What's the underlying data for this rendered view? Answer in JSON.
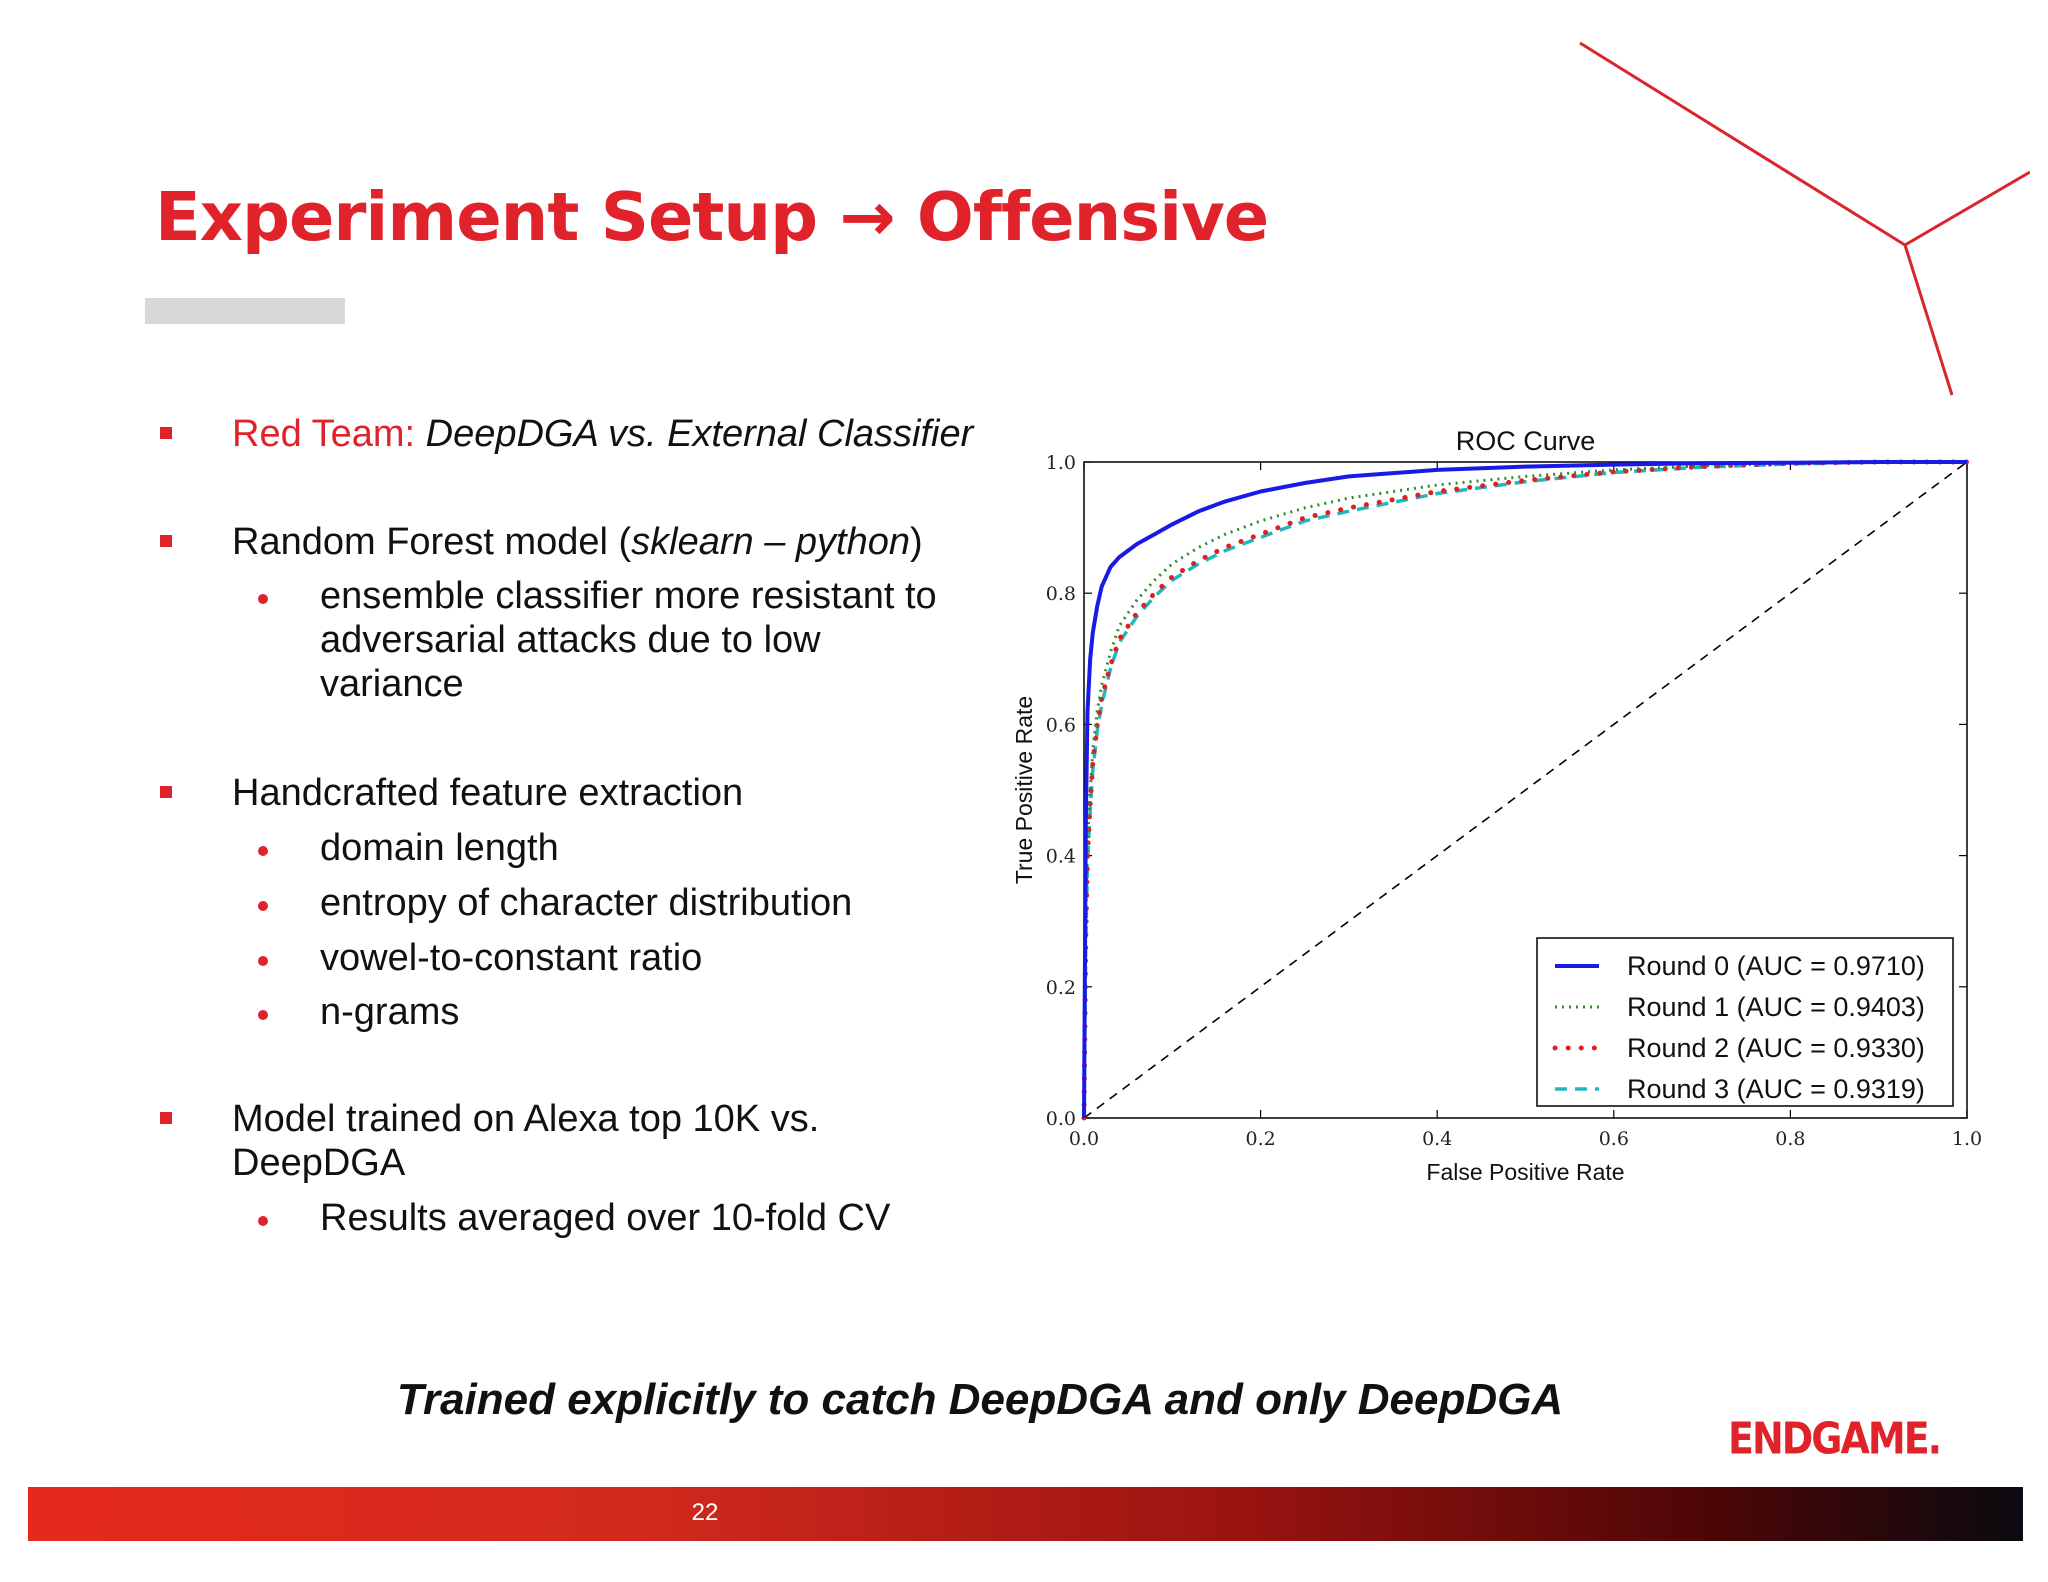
{
  "slide": {
    "title": "Experiment Setup → Offensive",
    "tagline": "Trained explicitly to catch DeepDGA and only DeepDGA",
    "logo": "ENDGAME.",
    "page_number": "22"
  },
  "bullets": {
    "b1_red": "Red Team:",
    "b1_rest": "DeepDGA vs. External Classifier",
    "b2_a": "Random Forest model (",
    "b2_it": "sklearn – python",
    "b2_b": ")",
    "b2_s1_l1": "ensemble classifier more resistant to",
    "b2_s1_l2": "adversarial attacks due to low",
    "b2_s1_l3": "variance",
    "b3": "Handcrafted feature extraction",
    "b3_s1": "domain length",
    "b3_s2": "entropy of character distribution",
    "b3_s3": "vowel-to-constant ratio",
    "b3_s4": "n-grams",
    "b4_l1": "Model trained on Alexa top 10K vs.",
    "b4_l2": "DeepDGA",
    "b4_s1": "Results averaged over 10-fold CV"
  },
  "chart_data": {
    "type": "line",
    "title": "ROC Curve",
    "xlabel": "False Positive Rate",
    "ylabel": "True Positive Rate",
    "xlim": [
      0.0,
      1.0
    ],
    "ylim": [
      0.0,
      1.0
    ],
    "xticks": [
      "0.0",
      "0.2",
      "0.4",
      "0.6",
      "0.8",
      "1.0"
    ],
    "yticks": [
      "0.0",
      "0.2",
      "0.4",
      "0.6",
      "0.8",
      "1.0"
    ],
    "grid": false,
    "legend_position": "bottom-right",
    "diagonal": {
      "style": "dashed",
      "color": "#000000",
      "x": [
        0.0,
        1.0
      ],
      "y": [
        0.0,
        1.0
      ]
    },
    "series": [
      {
        "name": "Round 0 (AUC = 0.9710)",
        "color": "#1a1ae6",
        "style": "solid",
        "x": [
          0.0,
          0.002,
          0.004,
          0.007,
          0.01,
          0.015,
          0.02,
          0.03,
          0.04,
          0.06,
          0.08,
          0.1,
          0.13,
          0.16,
          0.2,
          0.25,
          0.3,
          0.4,
          0.5,
          0.6,
          0.7,
          0.8,
          0.9,
          1.0
        ],
        "y": [
          0.0,
          0.45,
          0.62,
          0.7,
          0.74,
          0.78,
          0.81,
          0.84,
          0.855,
          0.875,
          0.89,
          0.905,
          0.925,
          0.94,
          0.955,
          0.968,
          0.978,
          0.988,
          0.993,
          0.996,
          0.998,
          0.999,
          1.0,
          1.0
        ]
      },
      {
        "name": "Round 1 (AUC = 0.9403)",
        "color": "#2e8b2e",
        "style": "dotted",
        "x": [
          0.0,
          0.002,
          0.004,
          0.007,
          0.01,
          0.015,
          0.02,
          0.03,
          0.04,
          0.06,
          0.08,
          0.1,
          0.13,
          0.16,
          0.2,
          0.25,
          0.3,
          0.4,
          0.5,
          0.6,
          0.7,
          0.8,
          0.9,
          1.0
        ],
        "y": [
          0.0,
          0.3,
          0.42,
          0.5,
          0.56,
          0.62,
          0.66,
          0.71,
          0.75,
          0.79,
          0.82,
          0.845,
          0.87,
          0.89,
          0.91,
          0.93,
          0.945,
          0.965,
          0.978,
          0.988,
          0.994,
          0.998,
          1.0,
          1.0
        ]
      },
      {
        "name": "Round 2 (AUC = 0.9330)",
        "color": "#e02020",
        "style": "dots",
        "x": [
          0.0,
          0.002,
          0.004,
          0.007,
          0.01,
          0.015,
          0.02,
          0.03,
          0.04,
          0.06,
          0.08,
          0.1,
          0.13,
          0.16,
          0.2,
          0.25,
          0.3,
          0.4,
          0.5,
          0.6,
          0.7,
          0.8,
          0.9,
          1.0
        ],
        "y": [
          0.0,
          0.28,
          0.4,
          0.48,
          0.54,
          0.6,
          0.64,
          0.69,
          0.73,
          0.77,
          0.8,
          0.825,
          0.85,
          0.87,
          0.89,
          0.915,
          0.93,
          0.955,
          0.972,
          0.985,
          0.993,
          0.998,
          1.0,
          1.0
        ]
      },
      {
        "name": "Round 3 (AUC = 0.9319)",
        "color": "#20b8c0",
        "style": "dashed",
        "x": [
          0.0,
          0.002,
          0.004,
          0.007,
          0.01,
          0.015,
          0.02,
          0.03,
          0.04,
          0.06,
          0.08,
          0.1,
          0.13,
          0.16,
          0.2,
          0.25,
          0.3,
          0.4,
          0.5,
          0.6,
          0.7,
          0.8,
          0.9,
          1.0
        ],
        "y": [
          0.0,
          0.27,
          0.39,
          0.47,
          0.53,
          0.59,
          0.63,
          0.685,
          0.725,
          0.765,
          0.795,
          0.82,
          0.845,
          0.865,
          0.885,
          0.91,
          0.925,
          0.952,
          0.97,
          0.984,
          0.992,
          0.997,
          1.0,
          1.0
        ]
      }
    ]
  }
}
